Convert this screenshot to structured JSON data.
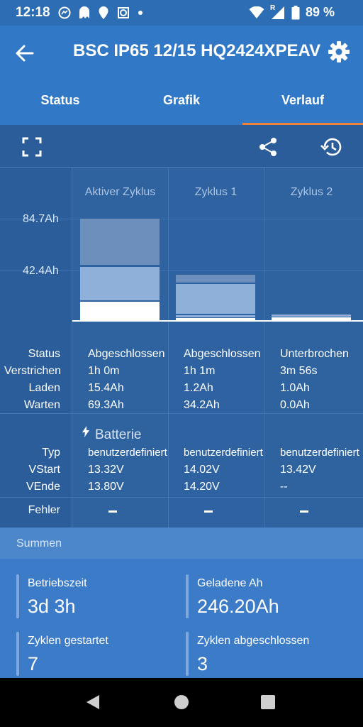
{
  "status_bar": {
    "time": "12:18",
    "battery_percent": "89 %",
    "roaming_mark": "R",
    "left_icons": [
      "messenger-icon",
      "ghost-icon",
      "location-pin-icon",
      "crop-icon",
      "dot-icon"
    ],
    "right_icons": [
      "wifi-icon",
      "signal-icon",
      "battery-icon"
    ]
  },
  "app_bar": {
    "title": "BSC IP65 12/15 HQ2424XPEAV",
    "tabs": [
      {
        "label": "Status",
        "selected": false
      },
      {
        "label": "Grafik",
        "selected": false
      },
      {
        "label": "Verlauf",
        "selected": true
      }
    ]
  },
  "toolbar": {
    "icons": [
      "fullscreen-icon",
      "share-icon",
      "history-icon"
    ]
  },
  "history": {
    "y_ticks": [
      "84.7Ah",
      "42.4Ah"
    ],
    "columns": [
      {
        "header": "Aktiver Zyklus",
        "status": "Abgeschlossen",
        "duration": "1h 0m",
        "charge": "15.4Ah",
        "standby": "69.3Ah",
        "type": "benutzerdefiniert",
        "v_start": "13.32V",
        "v_end": "13.80V",
        "error": "–"
      },
      {
        "header": "Zyklus 1",
        "status": "Abgeschlossen",
        "duration": "1h 1m",
        "charge": "1.2Ah",
        "standby": "34.2Ah",
        "type": "benutzerdefiniert",
        "v_start": "14.02V",
        "v_end": "14.20V",
        "error": "–"
      },
      {
        "header": "Zyklus 2",
        "status": "Unterbrochen",
        "duration": "3m 56s",
        "charge": "1.0Ah",
        "standby": "0.0Ah",
        "type": "benutzerdefiniert",
        "v_start": "13.42V",
        "v_end": "--",
        "error": "–"
      }
    ],
    "row_labels": {
      "status": "Status",
      "duration": "Verstrichen",
      "charge": "Laden",
      "standby": "Warten",
      "type": "Typ",
      "v_start": "VStart",
      "v_end": "VEnde",
      "error": "Fehler"
    },
    "battery_section": "Batterie",
    "bar_colors": {
      "bulk": "#ffffff",
      "absorption": "#8fb0d8",
      "float": "#6d8fbb"
    }
  },
  "summen": {
    "title": "Summen",
    "items": [
      {
        "label": "Betriebszeit",
        "value": "3d 3h"
      },
      {
        "label": "Geladene Ah",
        "value": "246.20Ah"
      },
      {
        "label": "Zyklen gestartet",
        "value": "7"
      },
      {
        "label": "Zyklen abgeschlossen",
        "value": "3"
      }
    ]
  },
  "nav_bar": {
    "buttons": [
      "back-nav-icon",
      "home-nav-icon",
      "recents-nav-icon"
    ]
  }
}
